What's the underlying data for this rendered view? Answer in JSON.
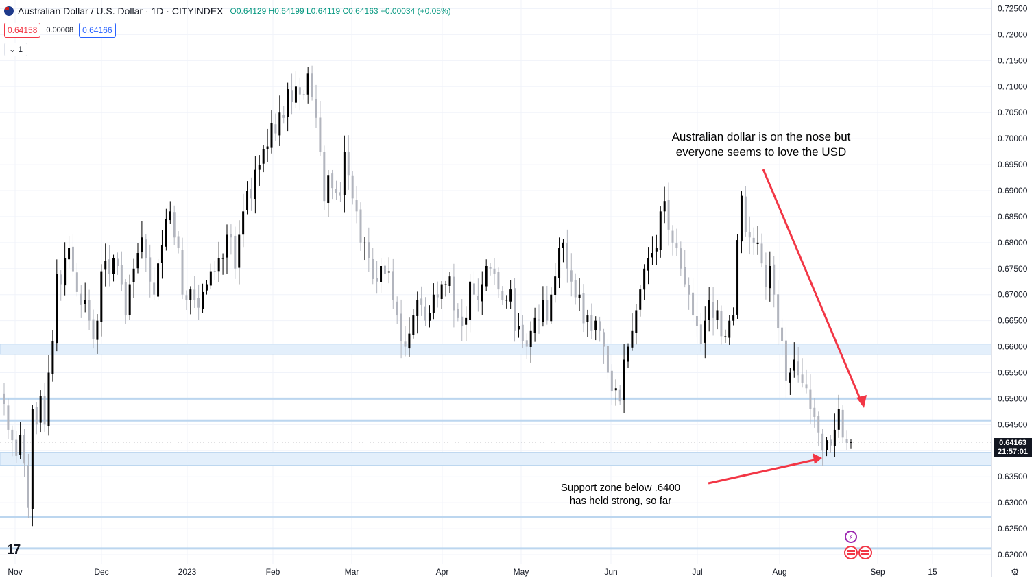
{
  "header": {
    "title": "Australian Dollar / U.S. Dollar · 1D · CITYINDEX",
    "open": "O0.64129",
    "high": "H0.64199",
    "low": "L0.64119",
    "close": "C0.64163",
    "change": "+0.00034 (+0.05%)"
  },
  "trade": {
    "sell": "0.64158",
    "spread": "0.00008",
    "buy": "0.64166"
  },
  "collapse_label": "1",
  "last_price": {
    "price": "0.64163",
    "countdown": "21:57:01"
  },
  "annotations": {
    "top": [
      "Australian dollar is on the nose but",
      "everyone seems to love the USD"
    ],
    "bottom": [
      "Support zone below .6400",
      "has held strong, so far"
    ]
  },
  "logo": "17",
  "colors": {
    "up": "#000000",
    "down": "#b2b5be",
    "zone": "#e3effb",
    "zone_line": "#bcd6ef",
    "arrow": "#f23645",
    "grid": "#f0f3fa"
  },
  "chart_data": {
    "type": "candlestick",
    "symbol": "AUDUSD",
    "interval": "1D",
    "ylim": [
      0.6185,
      0.7265
    ],
    "y_ticks": [
      "0.72500",
      "0.72000",
      "0.71500",
      "0.71000",
      "0.70500",
      "0.70000",
      "0.69500",
      "0.69000",
      "0.68500",
      "0.68000",
      "0.67500",
      "0.67000",
      "0.66500",
      "0.66000",
      "0.65500",
      "0.65000",
      "0.64500",
      "0.64000",
      "0.63500",
      "0.63000",
      "0.62500",
      "0.62000"
    ],
    "x_ticks": [
      "Nov",
      "Dec",
      "2023",
      "Feb",
      "Mar",
      "Apr",
      "May",
      "Jun",
      "Jul",
      "Aug",
      "Sep",
      "15"
    ],
    "support_zones": [
      [
        0.6585,
        0.6605
      ],
      [
        0.6372,
        0.6397
      ]
    ],
    "support_lines": [
      0.65,
      0.6458,
      0.6272,
      0.6212
    ],
    "last_close": 0.64163,
    "closes": [
      0.649,
      0.644,
      0.642,
      0.639,
      0.643,
      0.6375,
      0.629,
      0.648,
      0.645,
      0.6505,
      0.645,
      0.655,
      0.661,
      0.674,
      0.672,
      0.677,
      0.679,
      0.6745,
      0.6705,
      0.668,
      0.669,
      0.665,
      0.6615,
      0.665,
      0.6745,
      0.6765,
      0.674,
      0.677,
      0.6755,
      0.672,
      0.666,
      0.672,
      0.675,
      0.678,
      0.681,
      0.677,
      0.6725,
      0.67,
      0.676,
      0.6795,
      0.6845,
      0.686,
      0.681,
      0.679,
      0.67,
      0.669,
      0.671,
      0.669,
      0.6675,
      0.6705,
      0.672,
      0.6745,
      0.6745,
      0.677,
      0.677,
      0.6815,
      0.681,
      0.675,
      0.6815,
      0.686,
      0.69,
      0.6885,
      0.694,
      0.695,
      0.698,
      0.6985,
      0.703,
      0.701,
      0.705,
      0.704,
      0.7095,
      0.707,
      0.71,
      0.7085,
      0.7085,
      0.7125,
      0.708,
      0.704,
      0.6975,
      0.688,
      0.693,
      0.6905,
      0.6895,
      0.689,
      0.6975,
      0.693,
      0.6885,
      0.686,
      0.68,
      0.68,
      0.677,
      0.673,
      0.6725,
      0.6755,
      0.674,
      0.6745,
      0.669,
      0.666,
      0.661,
      0.66,
      0.6625,
      0.666,
      0.669,
      0.668,
      0.665,
      0.6665,
      0.67,
      0.6695,
      0.672,
      0.672,
      0.6735,
      0.667,
      0.6655,
      0.664,
      0.6655,
      0.6725,
      0.67,
      0.669,
      0.672,
      0.6755,
      0.675,
      0.674,
      0.671,
      0.669,
      0.669,
      0.671,
      0.663,
      0.664,
      0.661,
      0.66,
      0.663,
      0.6655,
      0.665,
      0.669,
      0.665,
      0.67,
      0.6735,
      0.679,
      0.68,
      0.675,
      0.6725,
      0.6695,
      0.67,
      0.6645,
      0.666,
      0.663,
      0.665,
      0.663,
      0.66,
      0.655,
      0.6515,
      0.652,
      0.6495,
      0.6575,
      0.66,
      0.663,
      0.667,
      0.671,
      0.675,
      0.677,
      0.678,
      0.679,
      0.686,
      0.688,
      0.6825,
      0.68,
      0.679,
      0.675,
      0.672,
      0.67,
      0.666,
      0.664,
      0.6605,
      0.665,
      0.669,
      0.6655,
      0.667,
      0.662,
      0.662,
      0.665,
      0.666,
      0.6805,
      0.689,
      0.682,
      0.681,
      0.68,
      0.68,
      0.676,
      0.6715,
      0.6755,
      0.67,
      0.6635,
      0.661,
      0.6535,
      0.655,
      0.6575,
      0.6545,
      0.653,
      0.652,
      0.648,
      0.6465,
      0.6435,
      0.64,
      0.642,
      0.641,
      0.644,
      0.648,
      0.6425,
      0.6415,
      0.64163
    ]
  }
}
